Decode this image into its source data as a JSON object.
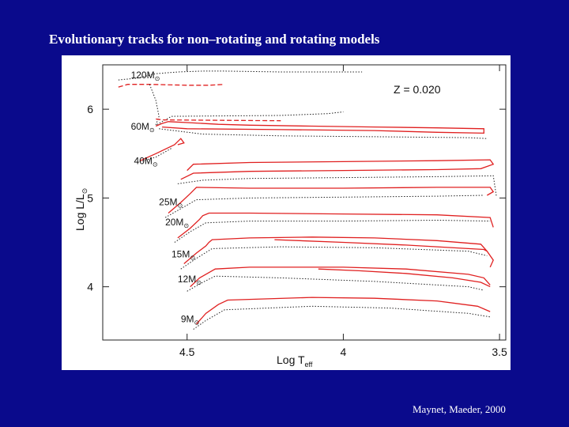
{
  "slide": {
    "title": "Evolutionary tracks for non–rotating and rotating models",
    "credit": "Maynet, Maeder, 2000"
  },
  "chart_data": {
    "type": "line",
    "xlabel": "Log T",
    "xlabel_sub": "eff",
    "ylabel": "Log L/L",
    "ylabel_sub": "⊙",
    "xlim": [
      4.77,
      3.48
    ],
    "ylim": [
      3.4,
      6.5
    ],
    "x_reversed": true,
    "xticks": [
      {
        "value": 4.5,
        "label": "4.5"
      },
      {
        "value": 4,
        "label": "4"
      },
      {
        "value": 3.5,
        "label": "3.5"
      }
    ],
    "yticks": [
      {
        "value": 4,
        "label": "4"
      },
      {
        "value": 5,
        "label": "5"
      },
      {
        "value": 6,
        "label": "6"
      }
    ],
    "annotation": "Z = 0.020",
    "grid": false,
    "colors": {
      "rotating": "#e02020",
      "non_rotating": "#222222"
    },
    "mass_labels": [
      {
        "text": "120M",
        "sub": "⊙",
        "logT": 4.68,
        "logL": 6.35
      },
      {
        "text": "60M",
        "sub": "⊙",
        "logT": 4.68,
        "logL": 5.77
      },
      {
        "text": "40M",
        "sub": "⊙",
        "logT": 4.67,
        "logL": 5.38
      },
      {
        "text": "25M",
        "sub": "⊙",
        "logT": 4.59,
        "logL": 4.92
      },
      {
        "text": "20M",
        "sub": "⊙",
        "logT": 4.57,
        "logL": 4.69
      },
      {
        "text": "15M",
        "sub": "⊙",
        "logT": 4.55,
        "logL": 4.33
      },
      {
        "text": "12M",
        "sub": "⊙",
        "logT": 4.53,
        "logL": 4.05
      },
      {
        "text": "9M",
        "sub": "⊙",
        "logT": 4.52,
        "logL": 3.6
      }
    ],
    "series": [
      {
        "track": "120",
        "kind": "rotating",
        "dash": "6,3",
        "x": [
          4.72,
          4.69,
          4.62,
          4.5,
          4.43,
          4.38
        ],
        "y": [
          6.25,
          6.28,
          6.28,
          6.27,
          6.27,
          6.28
        ]
      },
      {
        "track": "120",
        "kind": "non_rotating",
        "x": [
          4.72,
          4.66,
          4.6,
          4.53,
          4.45,
          4.38,
          4.2,
          3.94
        ],
        "y": [
          6.33,
          6.35,
          6.4,
          6.42,
          6.43,
          6.43,
          6.42,
          6.42
        ]
      },
      {
        "track": "120",
        "kind": "non_rotating",
        "x": [
          4.62,
          4.6,
          4.59,
          4.6,
          4.55,
          4.2,
          4.05,
          4.0
        ],
        "y": [
          6.28,
          6.1,
          5.92,
          5.82,
          5.92,
          5.93,
          5.95,
          5.97
        ]
      },
      {
        "track": "60",
        "kind": "rotating",
        "dash": "6,3",
        "x": [
          4.6,
          4.58,
          4.2
        ],
        "y": [
          5.89,
          5.88,
          5.87
        ]
      },
      {
        "track": "60",
        "kind": "rotating",
        "x": [
          4.6,
          4.58,
          4.56,
          4.5,
          4.4,
          4.3,
          4.1,
          3.9,
          3.7,
          3.55,
          3.55,
          3.7,
          3.9,
          4.2,
          4.5,
          4.58
        ],
        "y": [
          5.81,
          5.84,
          5.86,
          5.85,
          5.83,
          5.82,
          5.81,
          5.8,
          5.79,
          5.78,
          5.73,
          5.74,
          5.76,
          5.77,
          5.78,
          5.8
        ]
      },
      {
        "track": "60",
        "kind": "non_rotating",
        "x": [
          4.59,
          4.45,
          4.2,
          3.9,
          3.6,
          3.54
        ],
        "y": [
          5.78,
          5.72,
          5.7,
          5.69,
          5.68,
          5.67
        ]
      },
      {
        "track": "40",
        "kind": "rotating",
        "x": [
          4.65,
          4.6,
          4.54,
          4.52,
          4.51,
          4.53
        ],
        "y": [
          5.42,
          5.5,
          5.6,
          5.67,
          5.62,
          5.6
        ]
      },
      {
        "track": "40",
        "kind": "non_rotating",
        "x": [
          4.66,
          4.6,
          4.55
        ],
        "y": [
          5.4,
          5.46,
          5.56
        ]
      },
      {
        "track": "32",
        "kind": "rotating",
        "x": [
          4.52,
          4.48,
          4.3,
          4.0,
          3.7,
          3.56,
          3.52,
          3.53,
          3.7,
          4.0,
          4.3,
          4.48,
          4.5
        ],
        "y": [
          5.21,
          5.28,
          5.3,
          5.31,
          5.32,
          5.33,
          5.38,
          5.43,
          5.42,
          5.41,
          5.4,
          5.38,
          5.31
        ]
      },
      {
        "track": "32",
        "kind": "non_rotating",
        "x": [
          4.53,
          4.45,
          4.3,
          4.0,
          3.7,
          3.52,
          3.51
        ],
        "y": [
          5.16,
          5.2,
          5.22,
          5.23,
          5.24,
          5.25,
          5.02
        ]
      },
      {
        "track": "25",
        "kind": "rotating",
        "x": [
          4.56,
          4.52,
          4.49,
          4.47,
          4.3,
          4.0,
          3.7,
          3.53,
          3.52,
          3.54
        ],
        "y": [
          4.83,
          4.95,
          5.05,
          5.12,
          5.11,
          5.11,
          5.12,
          5.12,
          5.07,
          5.03
        ]
      },
      {
        "track": "25",
        "kind": "non_rotating",
        "x": [
          4.57,
          4.52,
          4.47,
          4.3,
          4.0,
          3.7,
          3.55
        ],
        "y": [
          4.78,
          4.88,
          4.98,
          5.0,
          5.01,
          5.02,
          5.03
        ]
      },
      {
        "track": "20",
        "kind": "rotating",
        "x": [
          4.53,
          4.49,
          4.46,
          4.45,
          4.43,
          4.3,
          4.0,
          3.7,
          3.53,
          3.52
        ],
        "y": [
          4.55,
          4.66,
          4.76,
          4.8,
          4.83,
          4.83,
          4.82,
          4.81,
          4.78,
          4.67
        ]
      },
      {
        "track": "20",
        "kind": "non_rotating",
        "x": [
          4.54,
          4.49,
          4.44,
          4.3,
          4.0,
          3.7,
          3.53
        ],
        "y": [
          4.5,
          4.62,
          4.72,
          4.74,
          4.74,
          4.75,
          4.74
        ]
      },
      {
        "track": "15",
        "kind": "rotating",
        "x": [
          4.51,
          4.47,
          4.44,
          4.43,
          4.42,
          4.3,
          4.1,
          3.9,
          3.7,
          3.56,
          3.54,
          3.52,
          3.53
        ],
        "y": [
          4.26,
          4.38,
          4.46,
          4.5,
          4.53,
          4.55,
          4.56,
          4.55,
          4.52,
          4.48,
          4.4,
          4.3,
          4.22
        ]
      },
      {
        "track": "15",
        "kind": "rotating",
        "x": [
          4.22,
          4.0,
          3.8,
          3.6,
          3.55,
          3.54
        ],
        "y": [
          4.53,
          4.5,
          4.47,
          4.43,
          4.42,
          4.4
        ]
      },
      {
        "track": "15",
        "kind": "non_rotating",
        "x": [
          4.52,
          4.47,
          4.42,
          4.2,
          3.9,
          3.6,
          3.54
        ],
        "y": [
          4.2,
          4.32,
          4.43,
          4.45,
          4.44,
          4.4,
          4.35
        ]
      },
      {
        "track": "12",
        "kind": "rotating",
        "x": [
          4.49,
          4.46,
          4.43,
          4.41,
          4.3,
          4.0,
          3.8,
          3.6,
          3.55,
          3.53
        ],
        "y": [
          4.0,
          4.1,
          4.16,
          4.2,
          4.22,
          4.22,
          4.2,
          4.14,
          4.1,
          4.02
        ]
      },
      {
        "track": "12",
        "kind": "rotating",
        "x": [
          4.08,
          3.95,
          3.8,
          3.65,
          3.56,
          3.53
        ],
        "y": [
          4.2,
          4.18,
          4.15,
          4.1,
          4.05,
          4.0
        ]
      },
      {
        "track": "12",
        "kind": "non_rotating",
        "x": [
          4.5,
          4.45,
          4.41,
          4.2,
          3.9,
          3.6,
          3.55
        ],
        "y": [
          3.95,
          4.05,
          4.12,
          4.1,
          4.06,
          4.0,
          3.96
        ]
      },
      {
        "track": "9",
        "kind": "rotating",
        "x": [
          4.47,
          4.44,
          4.4,
          4.37,
          4.1,
          3.9,
          3.7,
          3.57,
          3.53
        ],
        "y": [
          3.58,
          3.7,
          3.8,
          3.85,
          3.88,
          3.87,
          3.84,
          3.78,
          3.72
        ]
      },
      {
        "track": "9",
        "kind": "non_rotating",
        "x": [
          4.48,
          4.44,
          4.38,
          4.1,
          3.85,
          3.6,
          3.53
        ],
        "y": [
          3.52,
          3.62,
          3.74,
          3.78,
          3.76,
          3.7,
          3.66
        ]
      }
    ]
  }
}
